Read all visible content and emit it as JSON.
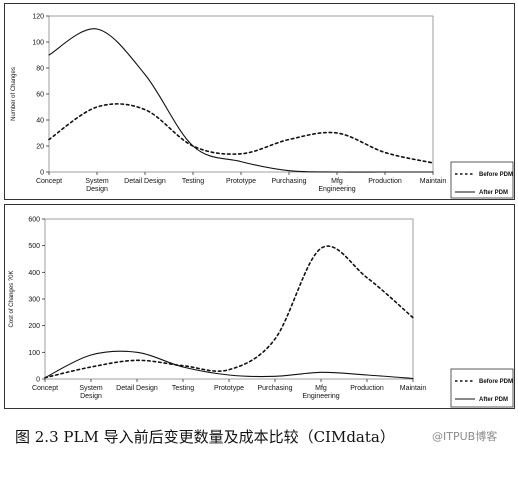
{
  "chart_data": [
    {
      "type": "line",
      "ylabel": "Number of Changes",
      "ylim": [
        0,
        120
      ],
      "yticks": [
        0,
        20,
        40,
        60,
        80,
        100,
        120
      ],
      "categories": [
        "Concept",
        "System Design",
        "Detail Design",
        "Testing",
        "Prototype",
        "Purchasing",
        "Mfg Engineering",
        "Production",
        "Maintain"
      ],
      "grid": false,
      "legend_position": "right",
      "series": [
        {
          "name": "Before PDM",
          "style": "dashed",
          "values": [
            25,
            50,
            48,
            20,
            14,
            25,
            30,
            15,
            7
          ]
        },
        {
          "name": "After PDM",
          "style": "solid",
          "values": [
            90,
            110,
            75,
            20,
            8,
            1,
            0,
            0,
            0
          ]
        }
      ]
    },
    {
      "type": "line",
      "ylabel": "Cost of Changes ?0K",
      "ylim": [
        0,
        600
      ],
      "yticks": [
        0,
        100,
        200,
        300,
        400,
        500,
        600
      ],
      "categories": [
        "Concept",
        "System Design",
        "Detail Design",
        "Testing",
        "Prototype",
        "Purchasing",
        "Mfg Engineering",
        "Production",
        "Maintain"
      ],
      "grid": false,
      "legend_position": "right",
      "series": [
        {
          "name": "Before PDM",
          "style": "dashed",
          "values": [
            5,
            45,
            70,
            50,
            35,
            150,
            490,
            380,
            230
          ]
        },
        {
          "name": "After PDM",
          "style": "solid",
          "values": [
            5,
            90,
            100,
            45,
            15,
            10,
            25,
            15,
            2
          ]
        }
      ]
    }
  ],
  "caption": "图 2.3   PLM 导入前后变更数量及成本比较（CIMdata）",
  "watermark": "@ITPUB博客"
}
